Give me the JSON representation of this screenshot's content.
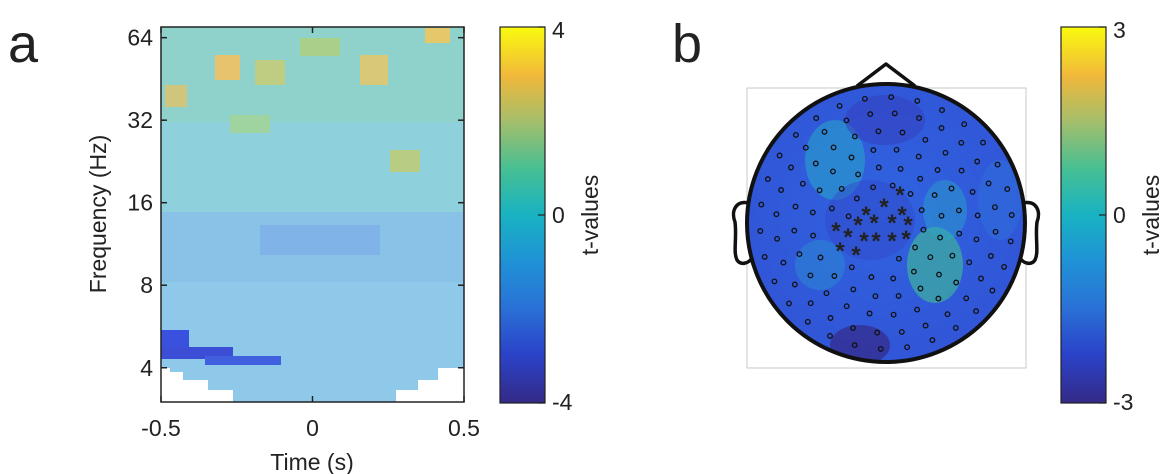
{
  "panels": [
    {
      "letter": "a"
    },
    {
      "letter": "b"
    }
  ],
  "chart_data": [
    {
      "type": "heatmap",
      "xlabel": "Time (s)",
      "ylabel": "Frequency (Hz)",
      "xlim": [
        -0.5,
        0.5
      ],
      "ylim": [
        3,
        70
      ],
      "y_scale": "log2",
      "x_ticks": [
        -0.5,
        0,
        0.5
      ],
      "x_tick_labels": [
        "-0.5",
        "0",
        "0.5"
      ],
      "y_ticks": [
        4,
        8,
        16,
        32,
        64
      ],
      "y_tick_labels": [
        "4",
        "8",
        "16",
        "32",
        "64"
      ],
      "colorbar": {
        "label": "t-values",
        "min": -4,
        "max": 4,
        "tick_labels": [
          "4",
          "0",
          "-4"
        ],
        "colormap": "parula"
      },
      "t_values": [
        {
          "freq_min": 4,
          "freq_max": 5.2,
          "time_min": -0.5,
          "time_max": -0.1,
          "t": -3.1
        },
        {
          "freq_min": 4.8,
          "freq_max": 5.8,
          "time_min": -0.5,
          "time_max": -0.42,
          "t": -3.1
        },
        {
          "freq_min": 8,
          "freq_max": 14,
          "time_min": -0.5,
          "time_max": 0.5,
          "t": -0.8
        },
        {
          "freq_min": 16,
          "freq_max": 32,
          "time_min": -0.5,
          "time_max": 0.5,
          "t": 0.4
        },
        {
          "freq_min": 32,
          "freq_max": 70,
          "time_min": -0.5,
          "time_max": 0.5,
          "t": 1.0
        }
      ],
      "notes": [
        "t-values in time-frequency bins shown as colored cells; lower-left cluster around 4-5 Hz near -0.5 to -0.1 s has strongest negative t-values"
      ]
    },
    {
      "type": "heatmap",
      "subtype": "scalp-topography",
      "colorbar": {
        "label": "t-values",
        "min": -3,
        "max": 3,
        "tick_labels": [
          "3",
          "0",
          "-3"
        ],
        "colormap": "parula"
      },
      "significant_marker": "*",
      "nonsignificant_marker": "o",
      "significant_channel_count": 16
    }
  ]
}
